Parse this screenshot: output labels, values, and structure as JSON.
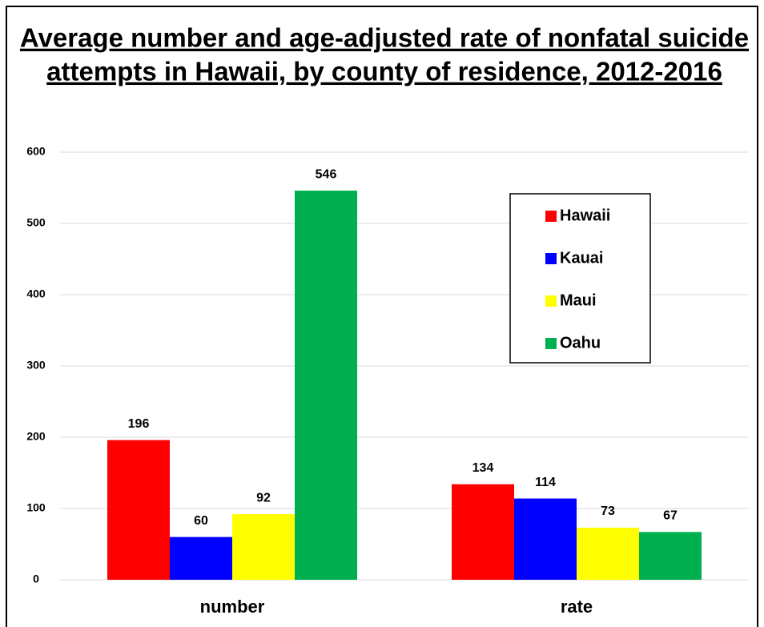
{
  "chart_data": {
    "type": "bar",
    "title": [
      "Average number and age-adjusted rate of nonfatal suicide",
      "attempts in Hawaii, by county of residence, 2012-2016"
    ],
    "categories": [
      "number",
      "rate"
    ],
    "series": [
      {
        "name": "Hawaii",
        "color": "#ff0000",
        "values": [
          196,
          134
        ]
      },
      {
        "name": "Kauai",
        "color": "#0000ff",
        "values": [
          60,
          114
        ]
      },
      {
        "name": "Maui",
        "color": "#ffff00",
        "values": [
          92,
          73
        ]
      },
      {
        "name": "Oahu",
        "color": "#00b050",
        "values": [
          546,
          67
        ]
      }
    ],
    "ylim": [
      0,
      600
    ],
    "yticks": [
      0,
      100,
      200,
      300,
      400,
      500,
      600
    ],
    "grid": true,
    "legend": "upper right"
  }
}
